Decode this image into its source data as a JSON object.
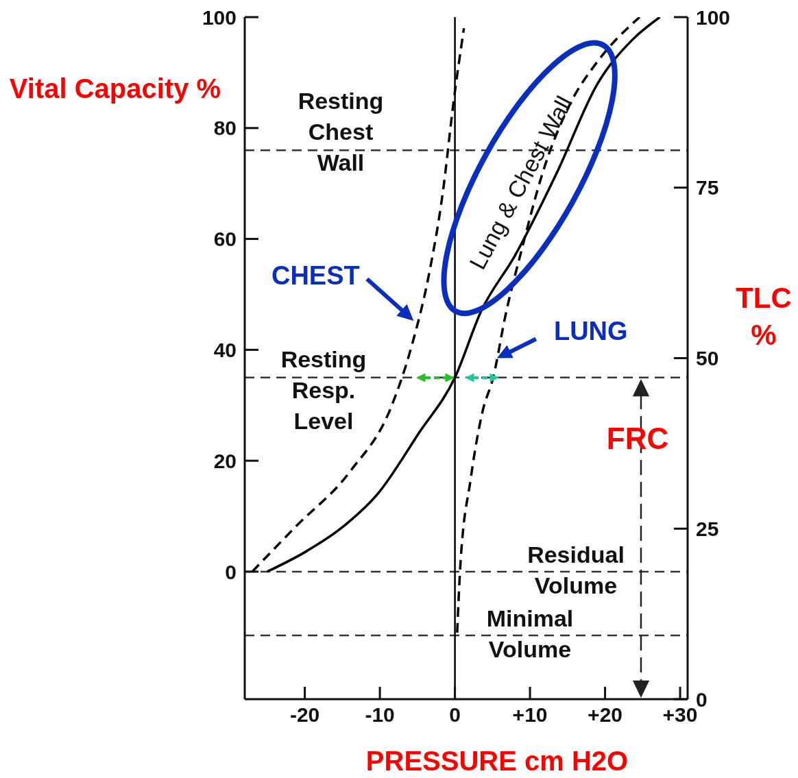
{
  "chart_data": {
    "type": "line",
    "ylabel": "Vital Capacity %",
    "y2label": "TLC %",
    "xlabel": "PRESSURE cm H2O",
    "xlim": [
      -28,
      31
    ],
    "xticks": [
      -20,
      -10,
      0,
      {
        "value": 10,
        "label": "+10"
      },
      {
        "value": 20,
        "label": "+20"
      },
      {
        "value": 30,
        "label": "+30"
      }
    ],
    "ylim": [
      -23,
      100
    ],
    "yticks": [
      0,
      20,
      40,
      60,
      80,
      100
    ],
    "y2lim": [
      0,
      100
    ],
    "y2ticks": [
      0,
      25,
      50,
      75,
      100
    ],
    "grid": false,
    "legend": false,
    "marker": "none",
    "series": [
      {
        "color": "#000000",
        "line_style": "solid",
        "x": [
          -25,
          -20,
          -15,
          -10.3,
          -4.8,
          0,
          3.5,
          8,
          13.6,
          19,
          23.7,
          27.3
        ],
        "values": [
          0,
          3.5,
          8,
          14,
          25,
          35,
          47,
          57,
          72,
          88,
          96,
          100
        ]
      },
      {
        "color": "#000000",
        "line_style": "dashed",
        "x": [
          -27,
          -21.3,
          -14,
          -8.4,
          -5.7,
          -3.4,
          -1.6,
          -0.2,
          1.2
        ],
        "values": [
          0,
          8,
          18,
          30,
          41,
          54,
          68.5,
          84.5,
          98
        ]
      },
      {
        "color": "#000000",
        "line_style": "dashed",
        "x": [
          0.3,
          0.7,
          2.1,
          3.7,
          5.1,
          6.7,
          9,
          11.7,
          15.4,
          19,
          24.6
        ],
        "values": [
          -11,
          0.6,
          16.7,
          29,
          35,
          46,
          58.6,
          72,
          84.5,
          92,
          100
        ]
      }
    ],
    "ref_lines": [
      {
        "axis": "y",
        "value": 76,
        "label": "Resting Chest Wall",
        "line_style": "dashed",
        "color": "#333333"
      },
      {
        "axis": "y",
        "value": 35,
        "label": "Resting Resp. Level",
        "line_style": "dashed",
        "color": "#333333"
      },
      {
        "axis": "y",
        "value": 0,
        "label": "Residual Volume",
        "line_style": "dashed",
        "color": "#333333"
      },
      {
        "axis": "y",
        "value": -11.5,
        "label": "Minimal Volume",
        "line_style": "dashed",
        "color": "#333333"
      },
      {
        "axis": "x",
        "value": 0,
        "line_style": "solid",
        "color": "#000000"
      }
    ],
    "annotations": [
      {
        "text": "Lung & Chest Wall",
        "x": 8,
        "y": 57
      },
      {
        "text": "CHEST",
        "x": -5.5,
        "y": 45
      },
      {
        "text": "LUNG",
        "x": 5.5,
        "y": 39
      },
      "FRC"
    ]
  }
}
